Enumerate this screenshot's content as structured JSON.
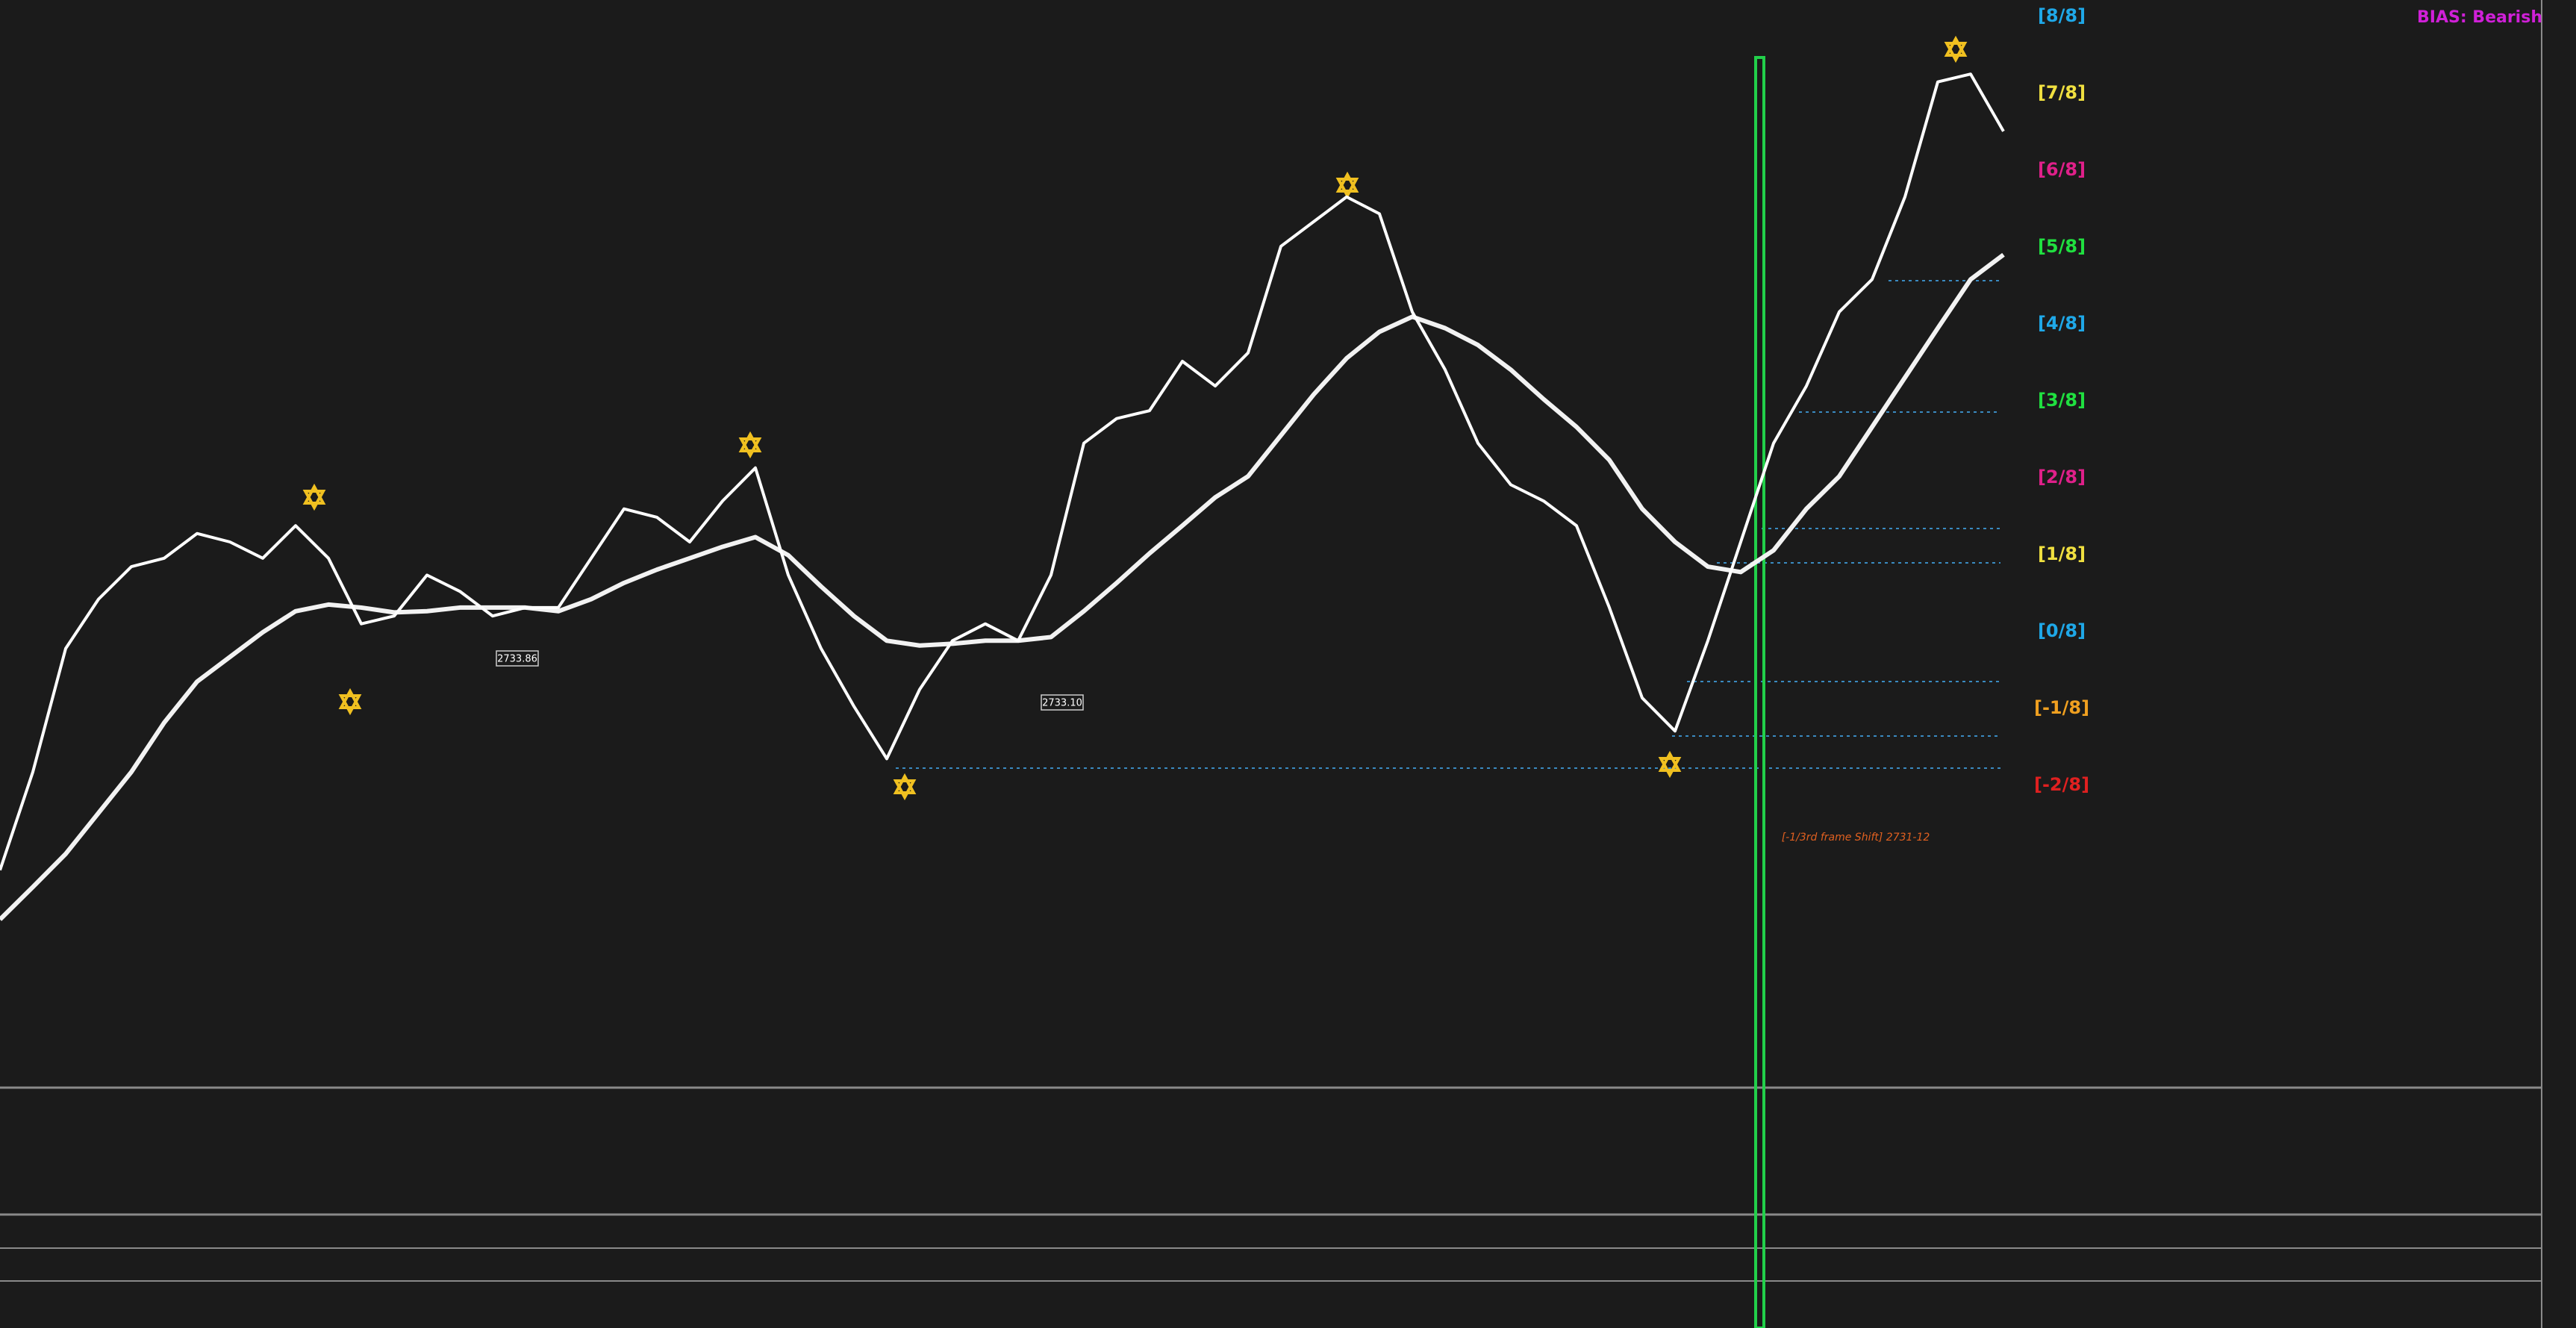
{
  "chart_data": {
    "type": "line",
    "bias": "BIAS: Bearish",
    "bias_color": "#d020d8",
    "categories": [
      null,
      null,
      null,
      null,
      null,
      null,
      null,
      null,
      null,
      null,
      null,
      null,
      null,
      null,
      null,
      null,
      null,
      null,
      null,
      null,
      null,
      null,
      null,
      null,
      null,
      null,
      null,
      null,
      null,
      null,
      null,
      null,
      null,
      null,
      null,
      null,
      null,
      null,
      null,
      null,
      null,
      null,
      null,
      null,
      null,
      null,
      null,
      null,
      null,
      null,
      null,
      null,
      null,
      null,
      null,
      null,
      null,
      null,
      null,
      null,
      null,
      null
    ],
    "series": [
      {
        "color": "#ffffff",
        "values": [
          2730.05,
          2731.68,
          2733.73,
          2734.55,
          2735.09,
          2735.23,
          2735.64,
          2735.5,
          2735.23,
          2735.77,
          2735.23,
          2734.14,
          2734.27,
          2734.95,
          2734.68,
          2734.27,
          2734.41,
          2734.41,
          2735.23,
          2736.05,
          2735.91,
          2735.5,
          2736.18,
          2736.73,
          2734.95,
          2733.73,
          2732.77,
          2731.9,
          2733.05,
          2733.86,
          2734.14,
          2733.86,
          2734.95,
          2737.14,
          2737.55,
          2737.68,
          2738.5,
          2738.09,
          2738.64,
          2740.41,
          2740.82,
          2741.23,
          2740.95,
          2739.32,
          2738.36,
          2737.14,
          2736.45,
          2736.18,
          2735.77,
          2734.41,
          2732.91,
          2732.36,
          2733.86,
          2735.5,
          2737.14,
          2738.09,
          2739.32,
          2739.86,
          2741.23,
          2743.14,
          2743.27,
          2742.32
        ]
      },
      {
        "color": "#f2f2f2",
        "values": [
          2729.23,
          2729.77,
          2730.32,
          2731.0,
          2731.68,
          2732.5,
          2733.18,
          2733.59,
          2734.0,
          2734.35,
          2734.46,
          2734.41,
          2734.33,
          2734.35,
          2734.41,
          2734.41,
          2734.41,
          2734.35,
          2734.55,
          2734.82,
          2735.04,
          2735.23,
          2735.42,
          2735.58,
          2735.28,
          2734.76,
          2734.27,
          2733.86,
          2733.78,
          2733.81,
          2733.86,
          2733.86,
          2733.92,
          2734.35,
          2734.82,
          2735.31,
          2735.77,
          2736.24,
          2736.59,
          2737.27,
          2737.95,
          2738.55,
          2738.99,
          2739.24,
          2739.05,
          2738.77,
          2738.36,
          2737.87,
          2737.41,
          2736.86,
          2736.05,
          2735.5,
          2735.09,
          2735.0,
          2735.36,
          2736.05,
          2736.59,
          2737.41,
          2738.23,
          2739.05,
          2739.86,
          2740.27
        ]
      }
    ],
    "ylim": [
      2726.5,
      2744.5
    ],
    "levels": [
      {
        "label": "[8/8]",
        "color": "#1fa8e8"
      },
      {
        "label": "[7/8]",
        "color": "#f0e040"
      },
      {
        "label": "[6/8]",
        "color": "#e0208a"
      },
      {
        "label": "[5/8]",
        "color": "#20e040"
      },
      {
        "label": "[4/8]",
        "color": "#1fa8e8"
      },
      {
        "label": "[3/8]",
        "color": "#20e040"
      },
      {
        "label": "[2/8]",
        "color": "#e0208a"
      },
      {
        "label": "[1/8]",
        "color": "#f0e040"
      },
      {
        "label": "[0/8]",
        "color": "#1fa8e8"
      },
      {
        "label": "[-1/8]",
        "color": "#f0a020"
      },
      {
        "label": "[-2/8]",
        "color": "#e02020"
      }
    ],
    "annotations": [
      "2733.86",
      "2733.10",
      "[-1/3rd frame Shift]  2731-12"
    ]
  }
}
